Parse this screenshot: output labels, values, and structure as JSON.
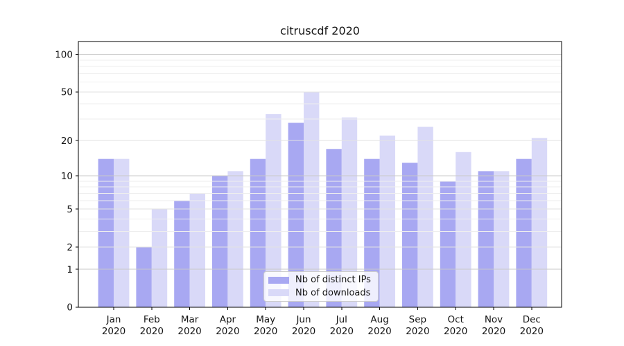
{
  "title": "citruscdf 2020",
  "chart_data": {
    "type": "bar",
    "title": "citruscdf 2020",
    "categories": [
      "Jan 2020",
      "Feb 2020",
      "Mar 2020",
      "Apr 2020",
      "May 2020",
      "Jun 2020",
      "Jul 2020",
      "Aug 2020",
      "Sep 2020",
      "Oct 2020",
      "Nov 2020",
      "Dec 2020"
    ],
    "series": [
      {
        "name": "Nb of distinct IPs",
        "color": "#a8a8f2",
        "values": [
          14,
          2,
          6,
          10,
          14,
          28,
          17,
          14,
          13,
          9,
          11,
          14
        ]
      },
      {
        "name": "Nb of downloads",
        "color": "#d9d9f8",
        "values": [
          14,
          5,
          7,
          11,
          33,
          50,
          31,
          22,
          26,
          16,
          11,
          21
        ]
      }
    ],
    "yscale": "log(1+x)",
    "y_ticks": [
      100,
      50,
      20,
      10,
      5,
      2,
      1,
      0
    ],
    "ylim": [
      0,
      127
    ],
    "grid": true,
    "legend_position": "lower center",
    "colors": {
      "background": "#ffffff",
      "text": "#151515",
      "axis": "#000000",
      "grid_major": "#c9c9c9",
      "grid_mid": "#e2e2e2",
      "grid_minor": "#eeeeee"
    }
  }
}
